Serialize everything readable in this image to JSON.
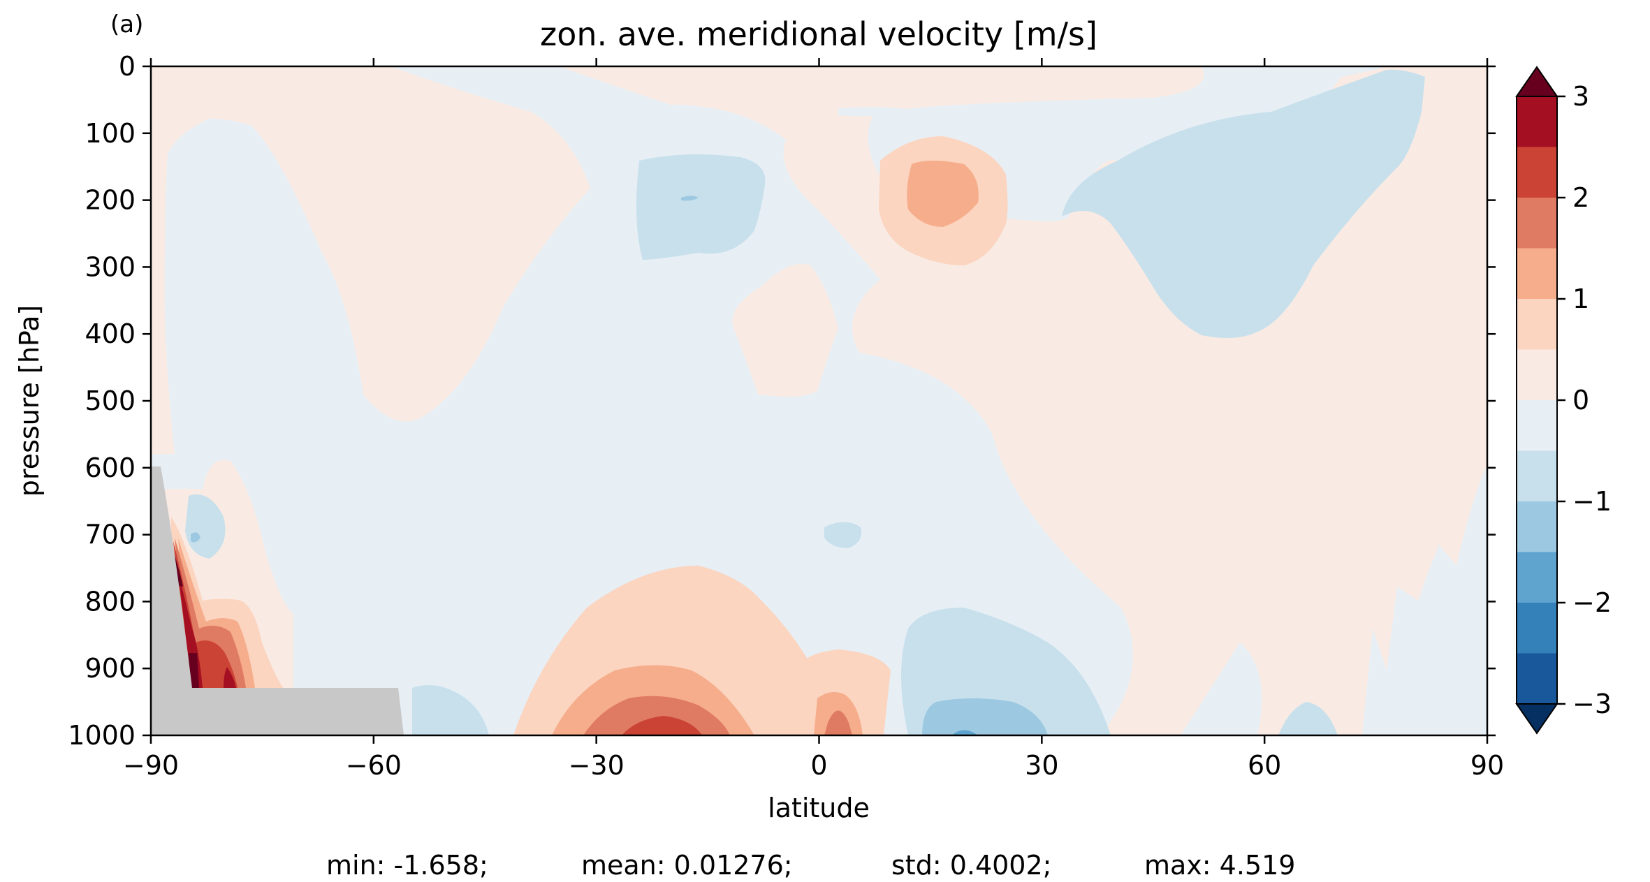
{
  "panel_label": "(a)",
  "chart_data": {
    "type": "contourf",
    "title": "zon. ave. meridional velocity [m/s]",
    "xlabel": "latitude",
    "ylabel": "pressure [hPa]",
    "xlim": [
      -90,
      90
    ],
    "ylim": [
      1000,
      0
    ],
    "y_inverted": true,
    "xticks": [
      -90,
      -60,
      -30,
      0,
      30,
      60,
      90
    ],
    "xtick_labels": [
      "−90",
      "−60",
      "−30",
      "0",
      "30",
      "60",
      "90"
    ],
    "yticks": [
      0,
      100,
      200,
      300,
      400,
      500,
      600,
      700,
      800,
      900,
      1000
    ],
    "ytick_labels": [
      "0",
      "100",
      "200",
      "300",
      "400",
      "500",
      "600",
      "700",
      "800",
      "900",
      "1000"
    ],
    "colormap": "RdBu_r",
    "levels": [
      -3,
      -2.5,
      -2,
      -1.5,
      -1,
      -0.5,
      0,
      0.5,
      1,
      1.5,
      2,
      2.5,
      3
    ],
    "colorbar": {
      "ticks": [
        3,
        2,
        1,
        0,
        -1,
        -2,
        -3
      ],
      "tick_labels": [
        "3",
        "2",
        "1",
        "0",
        "−1",
        "−2",
        "−3"
      ],
      "extend": "both",
      "bands_top_to_bottom": [
        "#a50f22",
        "#cb4335",
        "#e07b63",
        "#f6ad8c",
        "#fbd5c0",
        "#f9ebe4",
        "#e7eff5",
        "#c8e0ec",
        "#9cc9e1",
        "#5fa4cf",
        "#3481ba",
        "#1a589c"
      ],
      "over_color": "#67001f",
      "under_color": "#053061"
    },
    "terrain_mask_color": "#c8c8c8",
    "regions": [
      {
        "sign": "positive",
        "level_band": [
          0,
          0.5
        ],
        "approx_lat_range": [
          -75,
          -45
        ],
        "approx_pressure_range": [
          0,
          530
        ],
        "note": "upper-left positive lobe"
      },
      {
        "sign": "positive",
        "level_band": [
          0,
          0.5
        ],
        "approx_lat_range": [
          -10,
          90
        ],
        "approx_pressure_range": [
          0,
          1000
        ]
      },
      {
        "sign": "positive",
        "level_band": [
          0.5,
          1.5
        ],
        "approx_lat_range": [
          8,
          25
        ],
        "approx_pressure_range": [
          130,
          300
        ],
        "max_value": 1.5
      },
      {
        "sign": "positive",
        "level_band": [
          0.5,
          2.5
        ],
        "approx_lat_range": [
          -40,
          5
        ],
        "approx_pressure_range": [
          730,
          1000
        ],
        "max_value": 2.5
      },
      {
        "sign": "positive",
        "level_band": [
          2,
          3
        ],
        "approx_lat_range": [
          -87,
          -75
        ],
        "approx_pressure_range": [
          720,
          930
        ],
        "max_value": 3
      },
      {
        "sign": "negative",
        "level_band": [
          -0.5,
          0
        ],
        "approx_lat_range": [
          -60,
          30
        ],
        "approx_pressure_range": [
          0,
          1000
        ]
      },
      {
        "sign": "negative",
        "level_band": [
          -1,
          -0.5
        ],
        "approx_lat_range": [
          -25,
          -8
        ],
        "approx_pressure_range": [
          130,
          290
        ],
        "min_value": -1
      },
      {
        "sign": "negative",
        "level_band": [
          -1,
          -0.5
        ],
        "approx_lat_range": [
          43,
          85
        ],
        "approx_pressure_range": [
          0,
          410
        ]
      },
      {
        "sign": "negative",
        "level_band": [
          -1.5,
          -0.5
        ],
        "approx_lat_range": [
          10,
          40
        ],
        "approx_pressure_range": [
          830,
          1000
        ],
        "min_value": -1.66
      }
    ],
    "stats": {
      "min": -1.658,
      "mean": 0.01276,
      "std": 0.4002,
      "max": 4.519
    }
  },
  "stats_text": {
    "min": "min: -1.658;",
    "mean": "mean: 0.01276;",
    "std": "std: 0.4002;",
    "max": "max: 4.519"
  }
}
